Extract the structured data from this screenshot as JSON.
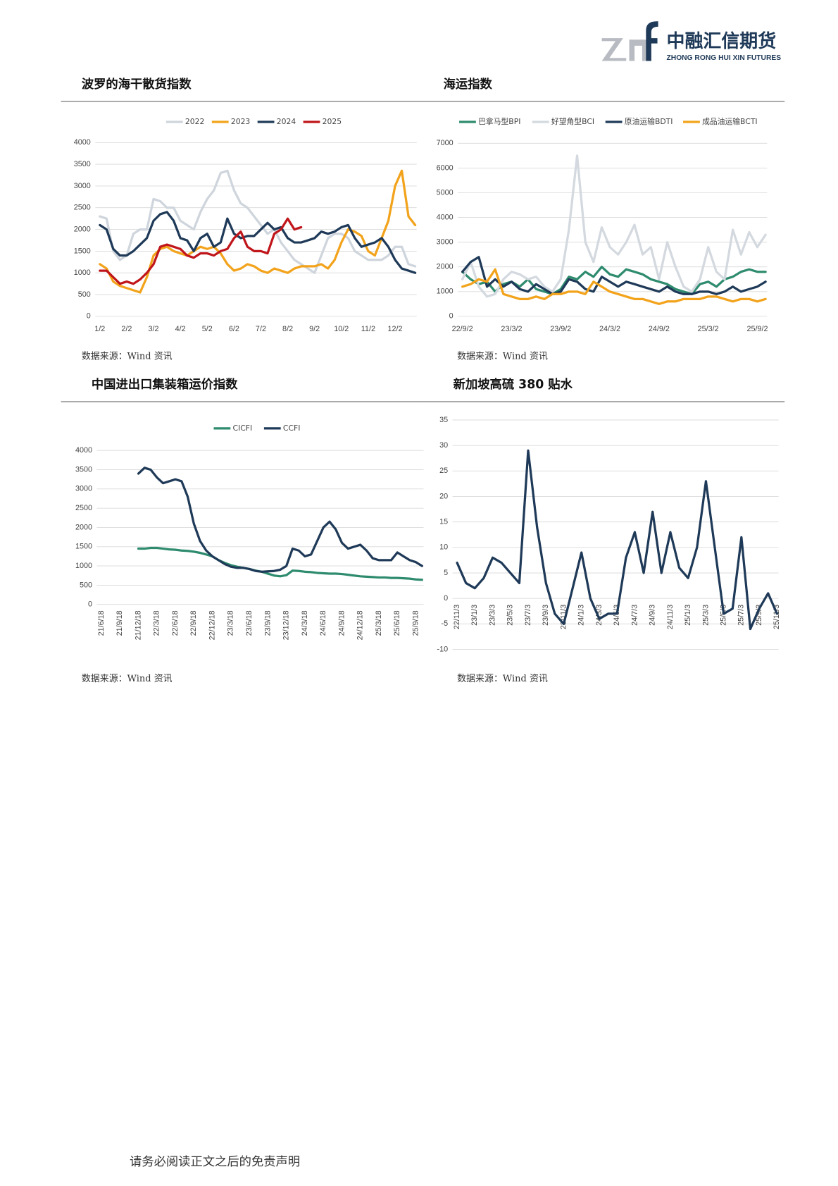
{
  "header": {
    "company": "中融汇信期货",
    "company_en": "ZHONG RONG HUI XIN FUTURES"
  },
  "chart_data": [
    {
      "type": "line",
      "title": "波罗的海干散货指数",
      "source": "数据来源：Wind 资讯",
      "grid": true,
      "legend": "top",
      "categories": [
        "1/2",
        null,
        null,
        null,
        "2/2",
        null,
        null,
        null,
        "3/2",
        null,
        null,
        null,
        "4/2",
        null,
        null,
        null,
        "5/2",
        null,
        null,
        null,
        "6/2",
        null,
        null,
        null,
        "7/2",
        null,
        null,
        null,
        "8/2",
        null,
        null,
        null,
        "9/2",
        null,
        null,
        null,
        "10/2",
        null,
        null,
        null,
        "11/2",
        null,
        null,
        null,
        "12/2",
        null,
        null,
        null
      ],
      "ylim": [
        0,
        4000
      ],
      "yticks": [
        0,
        500,
        1000,
        1500,
        2000,
        2500,
        3000,
        3500,
        4000
      ],
      "series": [
        {
          "name": "2022",
          "color": "#cfd5dc",
          "values": [
            2300,
            2250,
            1500,
            1300,
            1400,
            1900,
            2000,
            2000,
            2700,
            2650,
            2500,
            2500,
            2200,
            2100,
            2000,
            2400,
            2700,
            2900,
            3300,
            3350,
            2900,
            2600,
            2500,
            2300,
            2100,
            1900,
            2000,
            1700,
            1500,
            1300,
            1200,
            1100,
            1000,
            1400,
            1800,
            1900,
            1900,
            1800,
            1500,
            1400,
            1300,
            1300,
            1300,
            1400,
            1600,
            1600,
            1200,
            1150
          ]
        },
        {
          "name": "2023",
          "color": "#f2a31b",
          "values": [
            1200,
            1100,
            800,
            700,
            650,
            600,
            550,
            900,
            1400,
            1550,
            1600,
            1500,
            1450,
            1400,
            1500,
            1600,
            1550,
            1600,
            1450,
            1200,
            1050,
            1100,
            1200,
            1150,
            1050,
            1000,
            1100,
            1050,
            1000,
            1100,
            1150,
            1150,
            1150,
            1200,
            1100,
            1300,
            1700,
            2000,
            1950,
            1850,
            1500,
            1400,
            1800,
            2200,
            3000,
            3350,
            2300,
            2100
          ]
        },
        {
          "name": "2024",
          "color": "#1f3a58",
          "values": [
            2100,
            2000,
            1550,
            1400,
            1400,
            1500,
            1650,
            1800,
            2200,
            2350,
            2400,
            2200,
            1800,
            1750,
            1500,
            1800,
            1900,
            1600,
            1700,
            2250,
            1900,
            1800,
            1850,
            1850,
            2000,
            2150,
            2000,
            2050,
            1800,
            1700,
            1700,
            1750,
            1800,
            1950,
            1900,
            1950,
            2050,
            2100,
            1800,
            1600,
            1650,
            1700,
            1800,
            1600,
            1300,
            1100,
            1050,
            1000
          ]
        },
        {
          "name": "2025",
          "color": "#c0161b",
          "values": [
            1050,
            1050,
            900,
            750,
            800,
            750,
            850,
            1000,
            1200,
            1600,
            1650,
            1600,
            1550,
            1400,
            1350,
            1450,
            1450,
            1400,
            1500,
            1550,
            1800,
            1950,
            1600,
            1500,
            1500,
            1450,
            1900,
            2000,
            2250,
            2000,
            2050,
            null,
            null,
            null,
            null,
            null,
            null,
            null,
            null,
            null,
            null,
            null,
            null,
            null,
            null,
            null,
            null,
            null
          ]
        }
      ]
    },
    {
      "type": "line",
      "title": "海运指数",
      "source": "数据来源：Wind 资讯",
      "grid": true,
      "legend": "top",
      "categories": [
        "22/9/2",
        null,
        null,
        null,
        null,
        null,
        "23/3/2",
        null,
        null,
        null,
        null,
        null,
        "23/9/2",
        null,
        null,
        null,
        null,
        null,
        "24/3/2",
        null,
        null,
        null,
        null,
        null,
        "24/9/2",
        null,
        null,
        null,
        null,
        null,
        "25/3/2",
        null,
        null,
        null,
        null,
        null,
        "25/9/2",
        null
      ],
      "ylim": [
        0,
        7000
      ],
      "yticks": [
        0,
        1000,
        2000,
        3000,
        4000,
        5000,
        6000,
        7000
      ],
      "series": [
        {
          "name": "巴拿马型BPI",
          "color": "#2e8b6e",
          "values": [
            1800,
            1500,
            1300,
            1400,
            1000,
            1300,
            1400,
            1200,
            1500,
            1100,
            1000,
            900,
            1100,
            1600,
            1500,
            1800,
            1600,
            2000,
            1700,
            1600,
            1900,
            1800,
            1700,
            1500,
            1400,
            1300,
            1100,
            1000,
            900,
            1300,
            1400,
            1200,
            1500,
            1600,
            1800,
            1900,
            1800,
            1800
          ]
        },
        {
          "name": "好望角型BCI",
          "color": "#d3d9df",
          "values": [
            1500,
            2200,
            1200,
            800,
            900,
            1500,
            1800,
            1700,
            1500,
            1600,
            1200,
            1000,
            1500,
            3500,
            6500,
            3000,
            2200,
            3600,
            2800,
            2500,
            3000,
            3700,
            2500,
            2800,
            1500,
            3000,
            2000,
            1200,
            1000,
            1500,
            2800,
            1800,
            1500,
            3500,
            2500,
            3400,
            2800,
            3300
          ]
        },
        {
          "name": "原油运输BDTI",
          "color": "#1f3a58",
          "values": [
            1800,
            2200,
            2400,
            1200,
            1500,
            1200,
            1400,
            1100,
            1000,
            1300,
            1100,
            900,
            1000,
            1500,
            1400,
            1100,
            1000,
            1600,
            1400,
            1200,
            1400,
            1300,
            1200,
            1100,
            1000,
            1200,
            1000,
            900,
            900,
            1000,
            1000,
            900,
            1000,
            1200,
            1000,
            1100,
            1200,
            1400
          ]
        },
        {
          "name": "成品油运输BCTI",
          "color": "#f2a31b",
          "values": [
            1200,
            1300,
            1500,
            1400,
            1900,
            900,
            800,
            700,
            700,
            800,
            700,
            900,
            900,
            1000,
            1000,
            900,
            1400,
            1200,
            1000,
            900,
            800,
            700,
            700,
            600,
            500,
            600,
            600,
            700,
            700,
            700,
            800,
            800,
            700,
            600,
            700,
            700,
            600,
            700
          ]
        }
      ]
    },
    {
      "type": "line",
      "title": "中国进出口集装箱运价指数",
      "source": "数据来源：Wind 资讯",
      "grid": true,
      "legend": "top",
      "categories": [
        "21/6/18",
        null,
        null,
        "21/9/18",
        null,
        null,
        "21/12/18",
        null,
        null,
        "22/3/18",
        null,
        null,
        "22/6/18",
        null,
        null,
        "22/9/18",
        null,
        null,
        "22/12/18",
        null,
        null,
        "23/3/18",
        null,
        null,
        "23/6/18",
        null,
        null,
        "23/9/18",
        null,
        null,
        "23/12/18",
        null,
        null,
        "24/3/18",
        null,
        null,
        "24/6/18",
        null,
        null,
        "24/9/18",
        null,
        null,
        "24/12/18",
        null,
        null,
        "25/3/18",
        null,
        null,
        "25/6/18",
        null,
        null,
        "25/9/18",
        null
      ],
      "ylim": [
        0,
        4000
      ],
      "yticks": [
        0,
        500,
        1000,
        1500,
        2000,
        2500,
        3000,
        3500,
        4000
      ],
      "series": [
        {
          "name": "CICFI",
          "color": "#2e8b6e",
          "values": [
            null,
            null,
            null,
            null,
            null,
            null,
            1450,
            1450,
            1470,
            1470,
            1450,
            1430,
            1420,
            1400,
            1390,
            1370,
            1340,
            1300,
            1250,
            1150,
            1080,
            1020,
            980,
            950,
            920,
            880,
            850,
            800,
            750,
            730,
            760,
            880,
            870,
            850,
            840,
            820,
            810,
            800,
            800,
            790,
            770,
            750,
            730,
            720,
            710,
            700,
            700,
            690,
            690,
            680,
            670,
            650,
            640
          ]
        },
        {
          "name": "CCFI",
          "color": "#1f3a58",
          "values": [
            null,
            null,
            null,
            null,
            null,
            null,
            3400,
            3550,
            3500,
            3300,
            3150,
            3200,
            3250,
            3200,
            2800,
            2100,
            1650,
            1400,
            1250,
            1150,
            1050,
            980,
            950,
            950,
            920,
            870,
            850,
            860,
            870,
            900,
            1000,
            1450,
            1400,
            1250,
            1300,
            1650,
            2000,
            2150,
            1950,
            1600,
            1450,
            1500,
            1550,
            1400,
            1200,
            1150,
            1150,
            1150,
            1350,
            1250,
            1150,
            1100,
            1000
          ]
        }
      ]
    },
    {
      "type": "line",
      "title": "新加坡高硫 380 贴水",
      "source": "数据来源：Wind 资讯",
      "grid": true,
      "color": "#1f3a58",
      "categories": [
        "22/11/3",
        null,
        "23/1/3",
        null,
        "23/3/3",
        null,
        "23/5/3",
        null,
        "23/7/3",
        null,
        "23/9/3",
        null,
        "23/11/3",
        null,
        "24/1/3",
        null,
        "24/3/3",
        null,
        "24/5/3",
        null,
        "24/7/3",
        null,
        "24/9/3",
        null,
        "24/11/3",
        null,
        "25/1/3",
        null,
        "25/3/3",
        null,
        "25/5/3",
        null,
        "25/7/3",
        null,
        "25/9/3",
        null,
        "25/11/3"
      ],
      "values": [
        7,
        3,
        2,
        4,
        8,
        7,
        5,
        3,
        29,
        14,
        3,
        -3,
        -5,
        2,
        9,
        0,
        -4,
        -3,
        -3,
        8,
        13,
        5,
        17,
        5,
        13,
        6,
        4,
        10,
        23,
        10,
        -3,
        -2,
        12,
        -6,
        -2,
        1,
        -3
      ],
      "ylim": [
        -10,
        35
      ],
      "yticks": [
        -10,
        -5,
        0,
        5,
        10,
        15,
        20,
        25,
        30,
        35
      ]
    }
  ],
  "footer": "请务必阅读正文之后的免责声明"
}
